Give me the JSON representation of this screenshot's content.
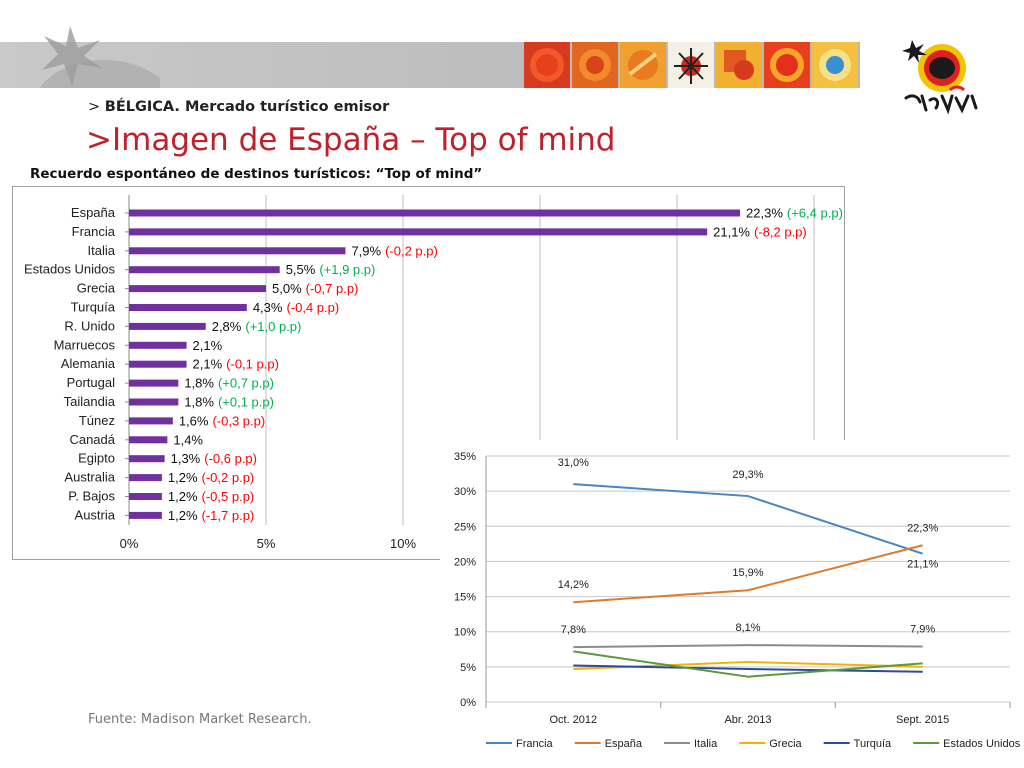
{
  "header": {
    "breadcrumb_prefix": ">",
    "breadcrumb": "BÉLGICA. Mercado turístico emisor",
    "title": ">Imagen de España – Top of mind",
    "logo_text": "España"
  },
  "source": "Fuente: Madison Market Research.",
  "colors": {
    "bar": "#7030a0",
    "positive": "#00b050",
    "negative": "#ff0000",
    "title_red": "#c0202a"
  },
  "chart_data": [
    {
      "type": "bar",
      "orientation": "horizontal",
      "title": "Recuerdo espontáneo de destinos turísticos: “Top of mind”",
      "xlim": [
        0,
        25
      ],
      "xticks": [
        "0%",
        "5%",
        "10%"
      ],
      "grid": true,
      "categories": [
        "España",
        "Francia",
        "Italia",
        "Estados Unidos",
        "Grecia",
        "Turquía",
        "R. Unido",
        "Marruecos",
        "Alemania",
        "Portugal",
        "Tailandia",
        "Túnez",
        "Canadá",
        "Egipto",
        "Australia",
        "P. Bajos",
        "Austria"
      ],
      "values": [
        22.3,
        21.1,
        7.9,
        5.5,
        5.0,
        4.3,
        2.8,
        2.1,
        2.1,
        1.8,
        1.8,
        1.6,
        1.4,
        1.3,
        1.2,
        1.2,
        1.2
      ],
      "value_labels": [
        "22,3%",
        "21,1%",
        "7,9%",
        "5,5%",
        "5,0%",
        "4,3%",
        "2,8%",
        "2,1%",
        "2,1%",
        "1,8%",
        "1,8%",
        "1,6%",
        "1,4%",
        "1,3%",
        "1,2%",
        "1,2%",
        "1,2%"
      ],
      "change_labels": [
        "(+6,4 p.p)",
        "(-8,2 p.p)",
        "(-0,2 p.p)",
        "(+1,9 p.p)",
        "(-0,7 p.p)",
        "(-0,4 p.p)",
        "(+1,0 p.p)",
        "",
        "(-0,1 p.p)",
        "(+0,7 p.p)",
        "(+0,1 p.p)",
        "(-0,3 p.p)",
        "",
        "(-0,6 p.p)",
        "(-0,2 p.p)",
        "(-0,5 p.p)",
        "(-1,7 p.p)"
      ]
    },
    {
      "type": "line",
      "categories": [
        "Oct. 2012",
        "Abr. 2013",
        "Sept. 2015"
      ],
      "ylim": [
        0,
        35
      ],
      "yticks": [
        "0%",
        "5%",
        "10%",
        "15%",
        "20%",
        "25%",
        "30%",
        "35%"
      ],
      "grid": true,
      "legend_position": "bottom",
      "series": [
        {
          "name": "Francia",
          "color": "#4a86c0",
          "values": [
            31.0,
            29.3,
            21.1
          ],
          "labels": [
            "31,0%",
            "29,3%",
            "21,1%"
          ]
        },
        {
          "name": "España",
          "color": "#e07b2b",
          "values": [
            14.2,
            15.9,
            22.3
          ],
          "labels": [
            "14,2%",
            "15,9%",
            "22,3%"
          ]
        },
        {
          "name": "Italia",
          "color": "#8c8c8c",
          "values": [
            7.8,
            8.1,
            7.9
          ],
          "labels": [
            "7,8%",
            "8,1%",
            "7,9%"
          ]
        },
        {
          "name": "Grecia",
          "color": "#f0b400",
          "values": [
            4.7,
            5.7,
            5.0
          ],
          "labels": []
        },
        {
          "name": "Turquía",
          "color": "#2e4a9e",
          "values": [
            5.2,
            4.7,
            4.3
          ],
          "labels": []
        },
        {
          "name": "Estados Unidos",
          "color": "#5a9a3a",
          "values": [
            7.2,
            3.6,
            5.5
          ],
          "labels": []
        }
      ]
    }
  ]
}
